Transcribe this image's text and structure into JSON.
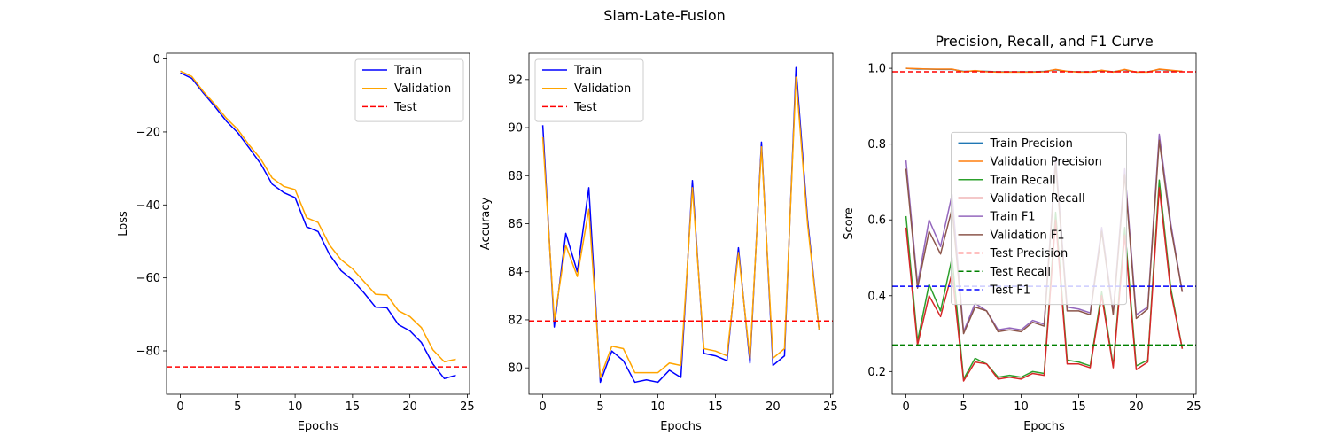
{
  "suptitle": "Siam-Late-Fusion",
  "chart_data": [
    {
      "type": "line",
      "title": "",
      "xlabel": "Epochs",
      "ylabel": "Loss",
      "xlim": [
        -1.2,
        25.2
      ],
      "ylim": [
        -91.9,
        1.6
      ],
      "xticks": [
        0,
        5,
        10,
        15,
        20,
        25
      ],
      "yticks": [
        0,
        -20,
        -40,
        -60,
        -80
      ],
      "tick_labels_x": [
        "0",
        "5",
        "10",
        "15",
        "20",
        "25"
      ],
      "tick_labels_y": [
        "0",
        "−20",
        "−40",
        "−60",
        "−80"
      ],
      "legend_position": "top-right",
      "x": [
        0,
        1,
        2,
        3,
        4,
        5,
        6,
        7,
        8,
        9,
        10,
        11,
        12,
        13,
        14,
        15,
        16,
        17,
        18,
        19,
        20,
        21,
        22,
        23,
        24
      ],
      "series": [
        {
          "name": "Train",
          "color": "#0000ff",
          "style": "solid",
          "values": [
            -3.8,
            -5.3,
            -9.3,
            -13.0,
            -17.0,
            -20.2,
            -24.4,
            -28.7,
            -34.3,
            -36.6,
            -38.0,
            -46.0,
            -47.3,
            -53.6,
            -58.0,
            -60.6,
            -64.1,
            -68.0,
            -68.2,
            -72.8,
            -74.5,
            -77.7,
            -83.6,
            -87.6,
            -86.7
          ]
        },
        {
          "name": "Validation",
          "color": "#ffa500",
          "style": "solid",
          "values": [
            -3.3,
            -4.8,
            -8.9,
            -12.4,
            -16.2,
            -19.3,
            -23.6,
            -27.4,
            -32.6,
            -34.9,
            -35.8,
            -43.5,
            -44.8,
            -51.0,
            -55.0,
            -57.5,
            -61.0,
            -64.5,
            -64.7,
            -69.0,
            -70.6,
            -73.6,
            -79.7,
            -83.0,
            -82.3
          ]
        }
      ],
      "hlines": [
        {
          "name": "Test",
          "color": "#ff0000",
          "style": "dashed",
          "value": -84.4
        }
      ]
    },
    {
      "type": "line",
      "title": "",
      "xlabel": "Epochs",
      "ylabel": "Accuracy",
      "xlim": [
        -1.2,
        25.2
      ],
      "ylim": [
        78.9,
        93.1
      ],
      "xticks": [
        0,
        5,
        10,
        15,
        20,
        25
      ],
      "yticks": [
        80,
        82,
        84,
        86,
        88,
        90,
        92
      ],
      "tick_labels_x": [
        "0",
        "5",
        "10",
        "15",
        "20",
        "25"
      ],
      "tick_labels_y": [
        "80",
        "82",
        "84",
        "86",
        "88",
        "90",
        "92"
      ],
      "legend_position": "top-left",
      "x": [
        0,
        1,
        2,
        3,
        4,
        5,
        6,
        7,
        8,
        9,
        10,
        11,
        12,
        13,
        14,
        15,
        16,
        17,
        18,
        19,
        20,
        21,
        22,
        23,
        24
      ],
      "series": [
        {
          "name": "Train",
          "color": "#0000ff",
          "style": "solid",
          "values": [
            90.1,
            81.7,
            85.6,
            84.0,
            87.5,
            79.4,
            80.7,
            80.3,
            79.4,
            79.5,
            79.4,
            79.9,
            79.6,
            87.8,
            80.6,
            80.5,
            80.3,
            85.0,
            80.2,
            89.4,
            80.1,
            80.5,
            92.5,
            86.2,
            81.6
          ]
        },
        {
          "name": "Validation",
          "color": "#ffa500",
          "style": "solid",
          "values": [
            89.6,
            82.0,
            85.1,
            83.8,
            86.6,
            79.6,
            80.9,
            80.8,
            79.8,
            79.8,
            79.8,
            80.2,
            80.1,
            87.5,
            80.8,
            80.7,
            80.5,
            84.8,
            80.4,
            89.2,
            80.4,
            80.8,
            92.1,
            86.0,
            81.6
          ]
        }
      ],
      "hlines": [
        {
          "name": "Test",
          "color": "#ff0000",
          "style": "dashed",
          "value": 81.95
        }
      ]
    },
    {
      "type": "line",
      "title": "Precision, Recall, and F1 Curve",
      "xlabel": "Epochs",
      "ylabel": "Score",
      "xlim": [
        -1.2,
        25.2
      ],
      "ylim": [
        0.14,
        1.04
      ],
      "xticks": [
        0,
        5,
        10,
        15,
        20,
        25
      ],
      "yticks": [
        0.2,
        0.4,
        0.6,
        0.8,
        1.0
      ],
      "tick_labels_x": [
        "0",
        "5",
        "10",
        "15",
        "20",
        "25"
      ],
      "tick_labels_y": [
        "0.2",
        "0.4",
        "0.6",
        "0.8",
        "1.0"
      ],
      "legend_position": "center",
      "x": [
        0,
        1,
        2,
        3,
        4,
        5,
        6,
        7,
        8,
        9,
        10,
        11,
        12,
        13,
        14,
        15,
        16,
        17,
        18,
        19,
        20,
        21,
        22,
        23,
        24
      ],
      "series": [
        {
          "name": "Train Precision",
          "color": "#1f77b4",
          "style": "solid",
          "values": [
            1.0,
            0.998,
            0.998,
            0.997,
            0.997,
            0.992,
            0.993,
            0.992,
            0.991,
            0.991,
            0.991,
            0.991,
            0.992,
            0.996,
            0.992,
            0.991,
            0.991,
            0.994,
            0.991,
            0.996,
            0.99,
            0.991,
            0.997,
            0.994,
            0.992
          ]
        },
        {
          "name": "Validation Precision",
          "color": "#ff7f0e",
          "style": "solid",
          "values": [
            1.0,
            0.999,
            0.998,
            0.998,
            0.998,
            0.991,
            0.994,
            0.991,
            0.99,
            0.99,
            0.99,
            0.99,
            0.991,
            0.997,
            0.992,
            0.99,
            0.99,
            0.995,
            0.99,
            0.997,
            0.99,
            0.99,
            0.998,
            0.995,
            0.992
          ]
        },
        {
          "name": "Train Recall",
          "color": "#2ca02c",
          "style": "solid",
          "values": [
            0.61,
            0.28,
            0.43,
            0.36,
            0.5,
            0.18,
            0.235,
            0.22,
            0.185,
            0.19,
            0.185,
            0.2,
            0.195,
            0.62,
            0.23,
            0.225,
            0.215,
            0.41,
            0.215,
            0.58,
            0.215,
            0.23,
            0.705,
            0.42,
            0.26
          ]
        },
        {
          "name": "Validation Recall",
          "color": "#d62728",
          "style": "solid",
          "values": [
            0.58,
            0.27,
            0.4,
            0.345,
            0.46,
            0.175,
            0.225,
            0.22,
            0.18,
            0.185,
            0.18,
            0.195,
            0.19,
            0.6,
            0.22,
            0.22,
            0.21,
            0.4,
            0.21,
            0.56,
            0.205,
            0.225,
            0.685,
            0.41,
            0.26
          ]
        },
        {
          "name": "Train F1",
          "color": "#9467bd",
          "style": "solid",
          "values": [
            0.757,
            0.43,
            0.6,
            0.53,
            0.667,
            0.305,
            0.38,
            0.36,
            0.31,
            0.315,
            0.31,
            0.335,
            0.325,
            0.765,
            0.37,
            0.365,
            0.355,
            0.58,
            0.355,
            0.735,
            0.35,
            0.37,
            0.826,
            0.59,
            0.41
          ]
        },
        {
          "name": "Validation F1",
          "color": "#8c564b",
          "style": "solid",
          "values": [
            0.735,
            0.42,
            0.57,
            0.51,
            0.63,
            0.3,
            0.37,
            0.36,
            0.305,
            0.31,
            0.305,
            0.33,
            0.32,
            0.75,
            0.36,
            0.36,
            0.35,
            0.57,
            0.35,
            0.72,
            0.34,
            0.365,
            0.81,
            0.58,
            0.41
          ]
        }
      ],
      "hlines": [
        {
          "name": "Test Precision",
          "color": "#ff0000",
          "style": "dashed",
          "value": 0.991
        },
        {
          "name": "Test Recall",
          "color": "#008000",
          "style": "dashed",
          "value": 0.27
        },
        {
          "name": "Test F1",
          "color": "#0000ff",
          "style": "dashed",
          "value": 0.425
        }
      ]
    }
  ]
}
